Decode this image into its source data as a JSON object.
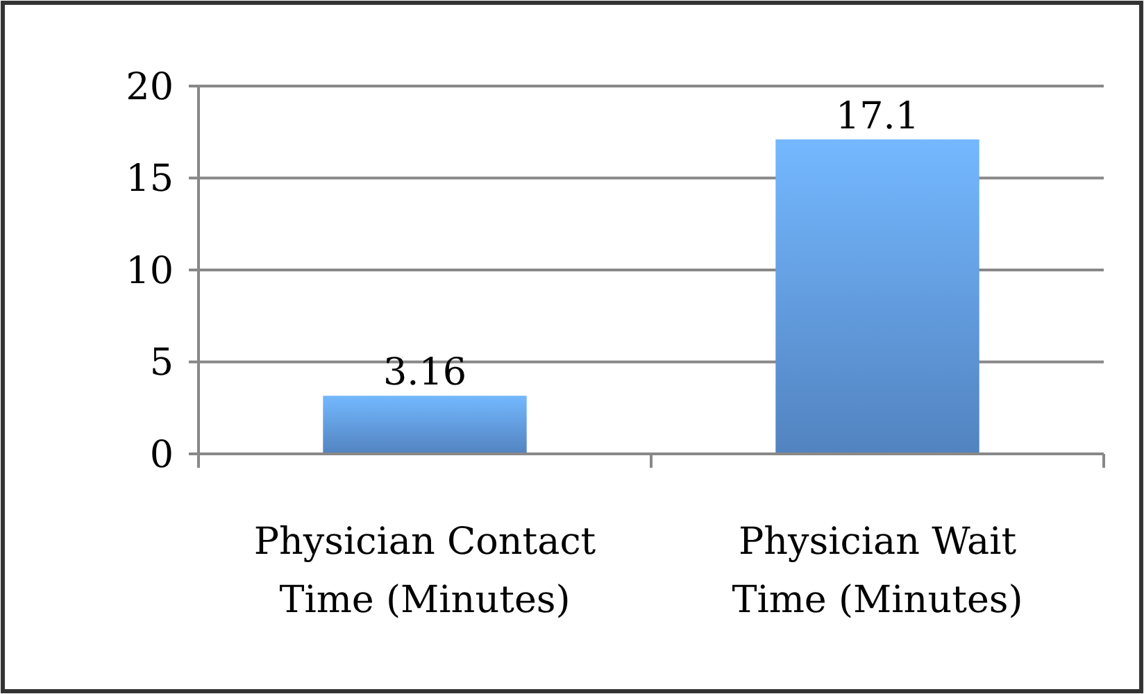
{
  "chart_data": {
    "type": "bar",
    "categories": [
      "Physician Contact Time (Minutes)",
      "Physician Wait Time (Minutes)"
    ],
    "values": [
      3.16,
      17.1
    ],
    "color": "#5a8fd2",
    "ylim": [
      0,
      20
    ],
    "yticks": [
      0,
      5,
      10,
      15,
      20
    ],
    "grid": "y",
    "data_labels": true
  }
}
